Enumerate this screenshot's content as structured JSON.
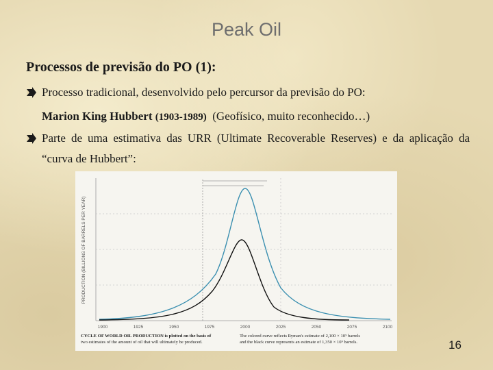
{
  "title": "Peak Oil",
  "heading": "Processos de previsão do PO (1):",
  "bullets": [
    {
      "text": "Processo tradicional, desenvolvido pelo percursor da previsão do PO:",
      "detail": {
        "name": "Marion King Hubbert",
        "years": "(1903-1989)",
        "note": "(Geofísico, muito reconhecido…)"
      }
    },
    {
      "text": "Parte de uma estimativa das URR (Ultimate Recoverable Reserves) e da aplicação da “curva de Hubbert”:"
    }
  ],
  "figure": {
    "y_label": "PRODUCTION (BILLIONS OF BARRELS PER YEAR)",
    "x_labels": [
      "1900",
      "1925",
      "1950",
      "1975",
      "2000",
      "2025",
      "2050",
      "2075",
      "2100"
    ],
    "caption_left": [
      "CYCLE OF WORLD OIL PRODUCTION is plotted on the basis of",
      "two estimates of the amount of oil that will ultimately be produced."
    ],
    "caption_right": [
      "The colored curve reflects Ryman's estimate of 2,100 × 10⁹ barrels",
      "and the black curve represents an estimate of 1,350 × 10⁹ barrels."
    ]
  },
  "page_number": "16"
}
